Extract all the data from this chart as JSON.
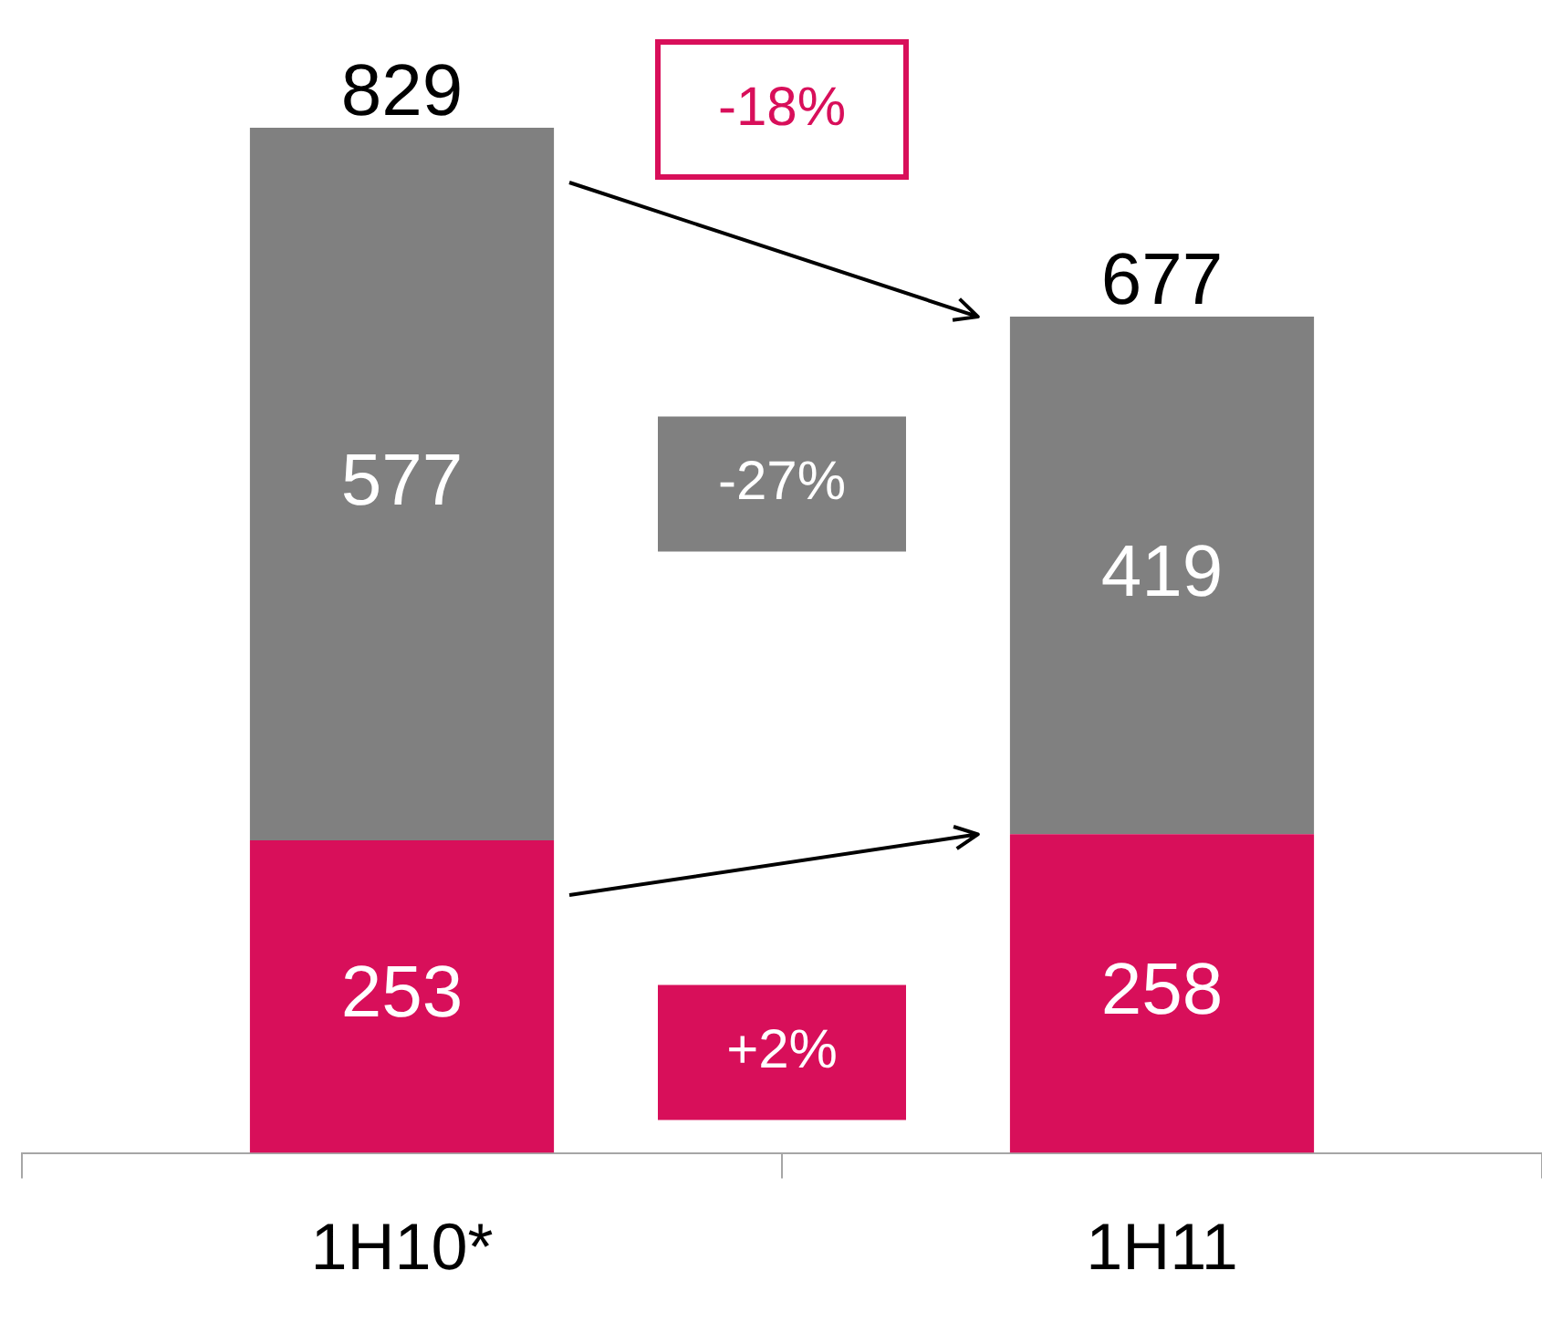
{
  "chart_data": {
    "type": "bar",
    "stacked": true,
    "categories": [
      "1H10*",
      "1H11"
    ],
    "series": [
      {
        "color": "#d80f5a",
        "values": [
          253,
          258
        ]
      },
      {
        "color": "#808080",
        "values": [
          577,
          419
        ]
      }
    ],
    "data_labels": true,
    "totals": [
      "829",
      "677"
    ],
    "legend": false,
    "grid": false,
    "annotations": [
      "-18%",
      "-27%",
      "+2%"
    ]
  }
}
